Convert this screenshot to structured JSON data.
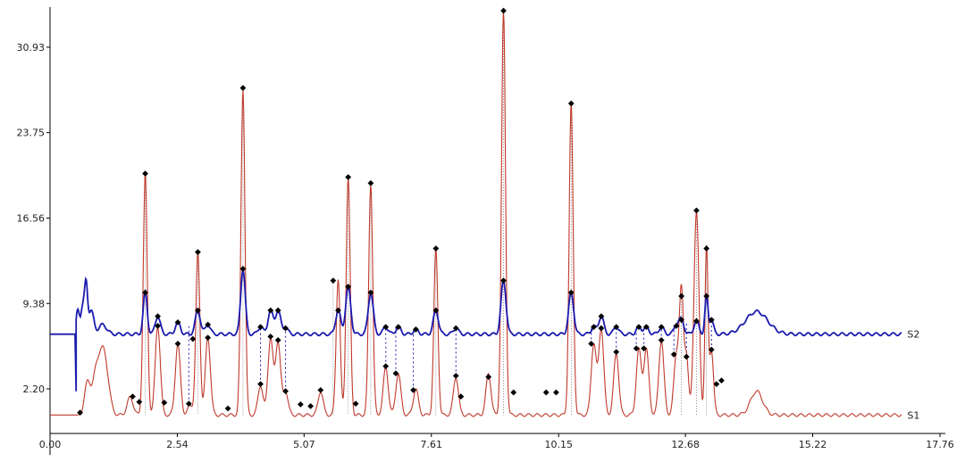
{
  "chart_data": {
    "type": "line",
    "title": "",
    "xlabel": "",
    "ylabel": "",
    "xlim": [
      0.0,
      17.76
    ],
    "ylim": [
      -0.2,
      34.0
    ],
    "x_ticks": [
      "0.00",
      "2.54",
      "5.07",
      "7.61",
      "10.15",
      "12.68",
      "15.22",
      "17.76"
    ],
    "y_ticks": [
      "2.20",
      "9.38",
      "16.56",
      "23.75",
      "30.93"
    ],
    "grid": false,
    "colors": {
      "S1": "#c0392b",
      "S2": "#1a1ab0",
      "marker": "#000000",
      "axis": "#000000"
    },
    "baselines": {
      "S1": 0.0,
      "S2": 6.8
    },
    "series": [
      {
        "name": "S1",
        "label": "S1",
        "peaks": [
          [
            0.75,
            2.8,
            0.06
          ],
          [
            0.9,
            2.5,
            0.06
          ],
          [
            1.0,
            3.0,
            0.07
          ],
          [
            1.1,
            4.0,
            0.08
          ],
          [
            1.6,
            1.5,
            0.06
          ],
          [
            1.9,
            20.3,
            0.04
          ],
          [
            2.15,
            7.5,
            0.05
          ],
          [
            2.55,
            6.0,
            0.05
          ],
          [
            2.8,
            0.8,
            0.05
          ],
          [
            2.95,
            13.7,
            0.04
          ],
          [
            3.15,
            6.5,
            0.05
          ],
          [
            3.85,
            27.5,
            0.04
          ],
          [
            4.2,
            2.5,
            0.05
          ],
          [
            4.4,
            6.5,
            0.05
          ],
          [
            4.55,
            6.2,
            0.05
          ],
          [
            4.7,
            2.0,
            0.05
          ],
          [
            5.4,
            2.0,
            0.05
          ],
          [
            5.75,
            11.5,
            0.04
          ],
          [
            5.95,
            20.0,
            0.04
          ],
          [
            6.4,
            19.5,
            0.04
          ],
          [
            6.7,
            4.0,
            0.05
          ],
          [
            6.95,
            3.5,
            0.05
          ],
          [
            7.3,
            2.2,
            0.05
          ],
          [
            7.7,
            14.0,
            0.04
          ],
          [
            8.1,
            3.2,
            0.05
          ],
          [
            8.75,
            3.5,
            0.05
          ],
          [
            9.05,
            34.0,
            0.04
          ],
          [
            10.4,
            26.2,
            0.04
          ],
          [
            10.85,
            6.0,
            0.05
          ],
          [
            11.0,
            7.3,
            0.05
          ],
          [
            11.3,
            5.2,
            0.05
          ],
          [
            11.75,
            5.5,
            0.05
          ],
          [
            11.9,
            5.5,
            0.05
          ],
          [
            12.2,
            6.3,
            0.05
          ],
          [
            12.5,
            5.0,
            0.05
          ],
          [
            12.6,
            10.0,
            0.04
          ],
          [
            12.7,
            5.0,
            0.04
          ],
          [
            12.9,
            17.2,
            0.05
          ],
          [
            13.1,
            14.0,
            0.03
          ],
          [
            13.2,
            5.5,
            0.04
          ],
          [
            14.1,
            2.0,
            0.12
          ]
        ],
        "markers": [
          [
            0.6,
            0.2
          ],
          [
            1.65,
            1.55
          ],
          [
            1.78,
            1.1
          ],
          [
            1.9,
            20.3
          ],
          [
            2.15,
            7.5
          ],
          [
            2.28,
            1.05
          ],
          [
            2.55,
            6.0
          ],
          [
            2.77,
            0.95
          ],
          [
            2.85,
            6.4
          ],
          [
            2.95,
            13.7
          ],
          [
            3.15,
            6.5
          ],
          [
            3.55,
            0.55
          ],
          [
            3.85,
            27.5
          ],
          [
            4.2,
            2.6
          ],
          [
            4.4,
            6.6
          ],
          [
            4.55,
            6.3
          ],
          [
            4.7,
            2.0
          ],
          [
            5.0,
            0.9
          ],
          [
            5.2,
            0.75
          ],
          [
            5.4,
            2.1
          ],
          [
            5.65,
            11.3
          ],
          [
            5.95,
            20.0
          ],
          [
            6.1,
            0.95
          ],
          [
            6.4,
            19.5
          ],
          [
            6.7,
            4.1
          ],
          [
            6.9,
            3.5
          ],
          [
            7.25,
            2.1
          ],
          [
            7.7,
            14.0
          ],
          [
            8.1,
            3.3
          ],
          [
            8.2,
            1.55
          ],
          [
            8.75,
            3.2
          ],
          [
            9.05,
            34.0
          ],
          [
            9.25,
            1.9
          ],
          [
            9.9,
            1.9
          ],
          [
            10.1,
            1.9
          ],
          [
            10.4,
            26.2
          ],
          [
            10.8,
            6.0
          ],
          [
            11.0,
            7.3
          ],
          [
            11.3,
            5.3
          ],
          [
            11.7,
            5.6
          ],
          [
            11.85,
            5.6
          ],
          [
            12.2,
            6.3
          ],
          [
            12.45,
            5.1
          ],
          [
            12.6,
            10.0
          ],
          [
            12.7,
            4.9
          ],
          [
            12.9,
            17.2
          ],
          [
            13.1,
            14.0
          ],
          [
            13.2,
            5.5
          ],
          [
            13.3,
            2.6
          ],
          [
            13.4,
            2.9
          ]
        ]
      },
      {
        "name": "S2",
        "label": "S2",
        "peaks": [
          [
            0.55,
            2.0,
            0.03
          ],
          [
            0.65,
            2.3,
            0.04
          ],
          [
            0.72,
            3.8,
            0.03
          ],
          [
            0.82,
            2.0,
            0.05
          ],
          [
            1.05,
            0.8,
            0.08
          ],
          [
            1.9,
            3.5,
            0.04
          ],
          [
            2.15,
            1.5,
            0.05
          ],
          [
            2.55,
            1.0,
            0.05
          ],
          [
            2.95,
            2.0,
            0.05
          ],
          [
            3.15,
            0.8,
            0.05
          ],
          [
            3.85,
            5.5,
            0.045
          ],
          [
            4.2,
            0.6,
            0.05
          ],
          [
            4.4,
            2.0,
            0.05
          ],
          [
            4.55,
            2.0,
            0.05
          ],
          [
            4.7,
            0.5,
            0.05
          ],
          [
            5.75,
            2.0,
            0.05
          ],
          [
            5.95,
            4.0,
            0.05
          ],
          [
            6.4,
            3.5,
            0.05
          ],
          [
            6.7,
            0.6,
            0.05
          ],
          [
            6.95,
            0.6,
            0.05
          ],
          [
            7.3,
            0.4,
            0.05
          ],
          [
            7.7,
            2.0,
            0.05
          ],
          [
            8.1,
            0.5,
            0.05
          ],
          [
            9.05,
            4.5,
            0.05
          ],
          [
            10.4,
            3.5,
            0.05
          ],
          [
            10.85,
            0.6,
            0.05
          ],
          [
            11.0,
            1.5,
            0.05
          ],
          [
            11.3,
            0.6,
            0.05
          ],
          [
            11.75,
            0.6,
            0.05
          ],
          [
            11.9,
            0.6,
            0.05
          ],
          [
            12.2,
            0.6,
            0.05
          ],
          [
            12.5,
            0.7,
            0.05
          ],
          [
            12.6,
            1.2,
            0.05
          ],
          [
            12.9,
            1.1,
            0.05
          ],
          [
            13.1,
            3.2,
            0.03
          ],
          [
            13.2,
            1.2,
            0.04
          ],
          [
            14.1,
            1.9,
            0.22
          ]
        ],
        "markers": [
          [
            1.9,
            10.3
          ],
          [
            2.15,
            8.3
          ],
          [
            2.55,
            7.8
          ],
          [
            2.95,
            8.8
          ],
          [
            3.15,
            7.6
          ],
          [
            3.85,
            12.3
          ],
          [
            4.2,
            7.4
          ],
          [
            4.4,
            8.8
          ],
          [
            4.55,
            8.8
          ],
          [
            4.7,
            7.3
          ],
          [
            5.75,
            8.8
          ],
          [
            5.95,
            10.8
          ],
          [
            6.4,
            10.3
          ],
          [
            6.7,
            7.4
          ],
          [
            6.95,
            7.4
          ],
          [
            7.3,
            7.2
          ],
          [
            7.7,
            8.8
          ],
          [
            8.1,
            7.3
          ],
          [
            9.05,
            11.3
          ],
          [
            10.4,
            10.3
          ],
          [
            10.85,
            7.4
          ],
          [
            11.0,
            8.3
          ],
          [
            11.3,
            7.4
          ],
          [
            11.75,
            7.4
          ],
          [
            11.9,
            7.4
          ],
          [
            12.2,
            7.4
          ],
          [
            12.5,
            7.5
          ],
          [
            12.6,
            8.0
          ],
          [
            12.9,
            7.9
          ],
          [
            13.1,
            10.0
          ],
          [
            13.2,
            8.0
          ]
        ]
      }
    ],
    "drop_lines": [
      [
        2.77,
        7.6
      ],
      [
        4.2,
        7.4
      ],
      [
        4.7,
        7.3
      ],
      [
        6.7,
        7.4
      ],
      [
        6.9,
        7.4
      ],
      [
        7.25,
        7.2
      ],
      [
        8.1,
        7.3
      ],
      [
        10.8,
        7.4
      ],
      [
        11.3,
        7.4
      ],
      [
        11.7,
        7.4
      ],
      [
        11.85,
        7.4
      ],
      [
        12.2,
        7.4
      ],
      [
        12.45,
        7.5
      ],
      [
        12.7,
        7.9
      ],
      [
        13.2,
        8.0
      ]
    ]
  }
}
